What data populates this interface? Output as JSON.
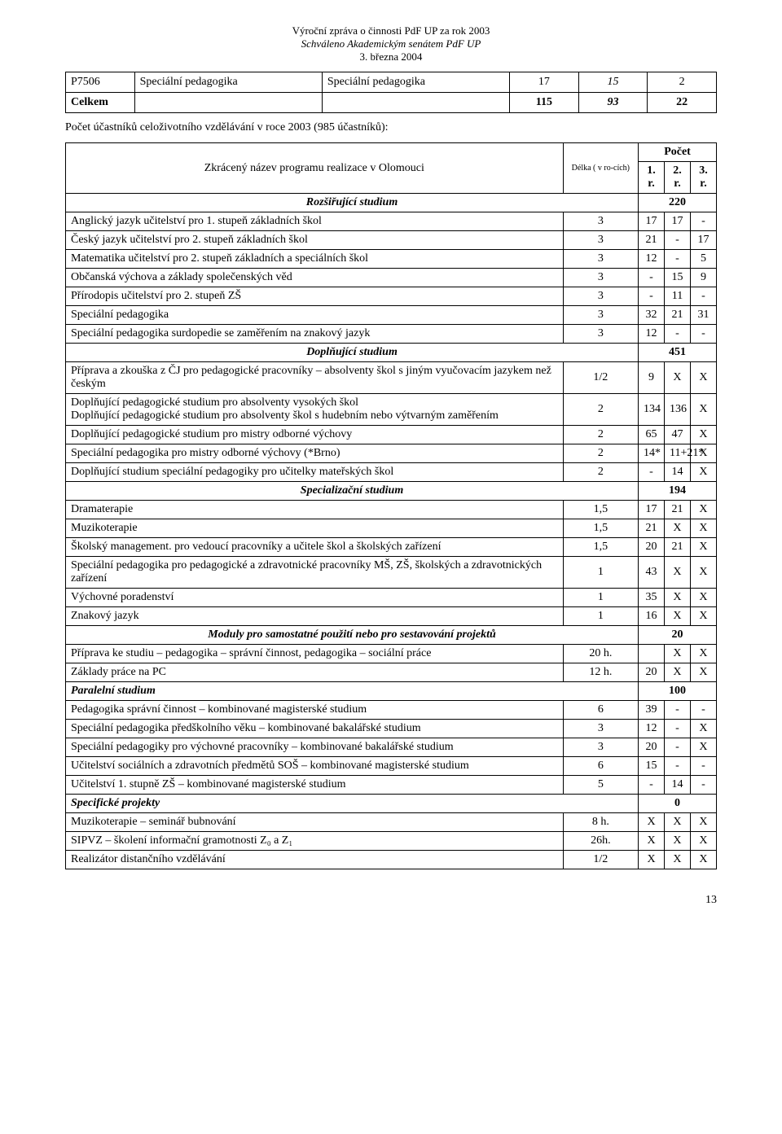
{
  "header": {
    "l1": "Výroční zpráva o činnosti PdF UP za rok 2003",
    "l2": "Schváleno Akademickým senátem PdF UP",
    "l3": "3. března  2004"
  },
  "table1": {
    "r1": {
      "c0": "P7506",
      "c1": "Speciální pedagogika",
      "c2": "Speciální pedagogika",
      "c3": "17",
      "c4": "15",
      "c5": "2"
    },
    "r2": {
      "c0": "Celkem",
      "c3": "115",
      "c4": "93",
      "c5": "22"
    }
  },
  "sentence": "Počet účastníků celoživotního vzdělávání v roce 2003 (985 účastníků):",
  "table2": {
    "hdr": {
      "name": "Zkrácený název programu realizace v Olomouci",
      "dur": "Délka ( v ro-cích)",
      "count": "Počet",
      "y1": "1. r.",
      "y2": "2. r.",
      "y3": "3. r."
    },
    "sections": {
      "roz": {
        "label": "Rozšiřující studium",
        "total": "220"
      },
      "dopl": {
        "label": "Doplňující studium",
        "total": "451"
      },
      "spec": {
        "label": "Specializační studium",
        "total": "194"
      },
      "mod": {
        "label": "Moduly pro samostatné použití nebo pro sestavování  projektů",
        "total": "20"
      },
      "par": {
        "label": "Paralelní studium",
        "total": "100"
      },
      "proj": {
        "label": "Specifické projekty",
        "total": "0"
      }
    },
    "rows": {
      "roz1": {
        "n": "Anglický jazyk učitelství pro 1. stupeň základních škol",
        "d": "3",
        "a": "17",
        "b": "17",
        "c": "-"
      },
      "roz2": {
        "n": "Český jazyk učitelství pro 2. stupeň základních škol",
        "d": "3",
        "a": "21",
        "b": "-",
        "c": "17"
      },
      "roz3": {
        "n": "Matematika učitelství pro 2. stupeň základních a speciálních škol",
        "d": "3",
        "a": "12",
        "b": "-",
        "c": "5"
      },
      "roz4": {
        "n": "Občanská výchova a základy společenských věd",
        "d": "3",
        "a": "-",
        "b": "15",
        "c": "9"
      },
      "roz5": {
        "n": "Přírodopis učitelství pro 2. stupeň ZŠ",
        "d": "3",
        "a": "-",
        "b": "11",
        "c": "-"
      },
      "roz6": {
        "n": "Speciální pedagogika",
        "d": "3",
        "a": "32",
        "b": "21",
        "c": "31"
      },
      "roz7": {
        "n": "Speciální pedagogika surdopedie se zaměřením na znakový jazyk",
        "d": "3",
        "a": "12",
        "b": "-",
        "c": "-"
      },
      "dopl1": {
        "n": "Příprava a zkouška z ČJ pro pedagogické pracovníky – absolventy škol s jiným vyučovacím jazykem než českým",
        "d": "1/2",
        "a": "9",
        "b": "X",
        "c": "X"
      },
      "dopl2": {
        "n": "Doplňující pedagogické studium pro absolventy vysokých škol\nDoplňující pedagogické studium pro absolventy škol s hudebním nebo výtvarným zaměřením",
        "d": "2",
        "a": "134",
        "b": "136",
        "c": "X"
      },
      "dopl3": {
        "n": "Doplňující pedagogické studium pro mistry odborné výchovy",
        "d": "2",
        "a": "65",
        "b": "47",
        "c": "X"
      },
      "dopl4": {
        "n": "Speciální pedagogika pro mistry odborné výchovy (*Brno)",
        "d": "2",
        "a": "14*",
        "b": "11+21*",
        "c": "X"
      },
      "dopl5": {
        "n": "Doplňující studium speciální pedagogiky pro učitelky mateřských škol",
        "d": "2",
        "a": "-",
        "b": "14",
        "c": "X"
      },
      "spec1": {
        "n": "Dramaterapie",
        "d": "1,5",
        "a": "17",
        "b": "21",
        "c": "X"
      },
      "spec2": {
        "n": "Muzikoterapie",
        "d": "1,5",
        "a": "21",
        "b": "X",
        "c": "X"
      },
      "spec3": {
        "n": "Školský management. pro vedoucí pracovníky a učitele škol a školských zařízení",
        "d": "1,5",
        "a": "20",
        "b": "21",
        "c": "X"
      },
      "spec4": {
        "n": "Speciální pedagogika pro pedagogické a zdravotnické pracovníky MŠ, ZŠ, školských a zdravotnických zařízení",
        "d": "1",
        "a": "43",
        "b": "X",
        "c": "X"
      },
      "spec5": {
        "n": "Výchovné poradenství",
        "d": "1",
        "a": "35",
        "b": "X",
        "c": "X"
      },
      "spec6": {
        "n": "Znakový jazyk",
        "d": "1",
        "a": "16",
        "b": "X",
        "c": "X"
      },
      "mod1": {
        "n": "Příprava ke studiu – pedagogika – správní činnost, pedagogika – sociální práce",
        "d": "20 h.",
        "a": "",
        "b": "X",
        "c": "X"
      },
      "mod2": {
        "n": "Základy práce na PC",
        "d": "12 h.",
        "a": "20",
        "b": "X",
        "c": "X"
      },
      "par1": {
        "n": "Pedagogika správní činnost – kombinované magisterské studium",
        "d": "6",
        "a": "39",
        "b": "-",
        "c": "-"
      },
      "par2": {
        "n": "Speciální pedagogika předškolního věku – kombinované bakalářské studium",
        "d": "3",
        "a": "12",
        "b": "-",
        "c": "X"
      },
      "par3": {
        "n": "Speciální pedagogiky pro výchovné pracovníky – kombinované bakalářské studium",
        "d": "3",
        "a": "20",
        "b": "-",
        "c": "X"
      },
      "par4": {
        "n": "Učitelství sociálních a zdravotních předmětů SOŠ – kombinované magisterské studium",
        "d": "6",
        "a": "15",
        "b": "-",
        "c": "-"
      },
      "par5": {
        "n": "Učitelství 1. stupně ZŠ – kombinované magisterské studium",
        "d": "5",
        "a": "-",
        "b": "14",
        "c": "-"
      },
      "proj1": {
        "n": "Muzikoterapie – seminář bubnování",
        "d": "8 h.",
        "a": "X",
        "b": "X",
        "c": "X"
      },
      "proj2": {
        "n": "SIPVZ – školení informační gramotnosti Z₀ a Z₁",
        "d": "26h.",
        "a": "X",
        "b": "X",
        "c": "X"
      },
      "proj3": {
        "n": "Realizátor distančního vzdělávání",
        "d": "1/2",
        "a": "X",
        "b": "X",
        "c": "X"
      }
    }
  },
  "page_num": "13"
}
